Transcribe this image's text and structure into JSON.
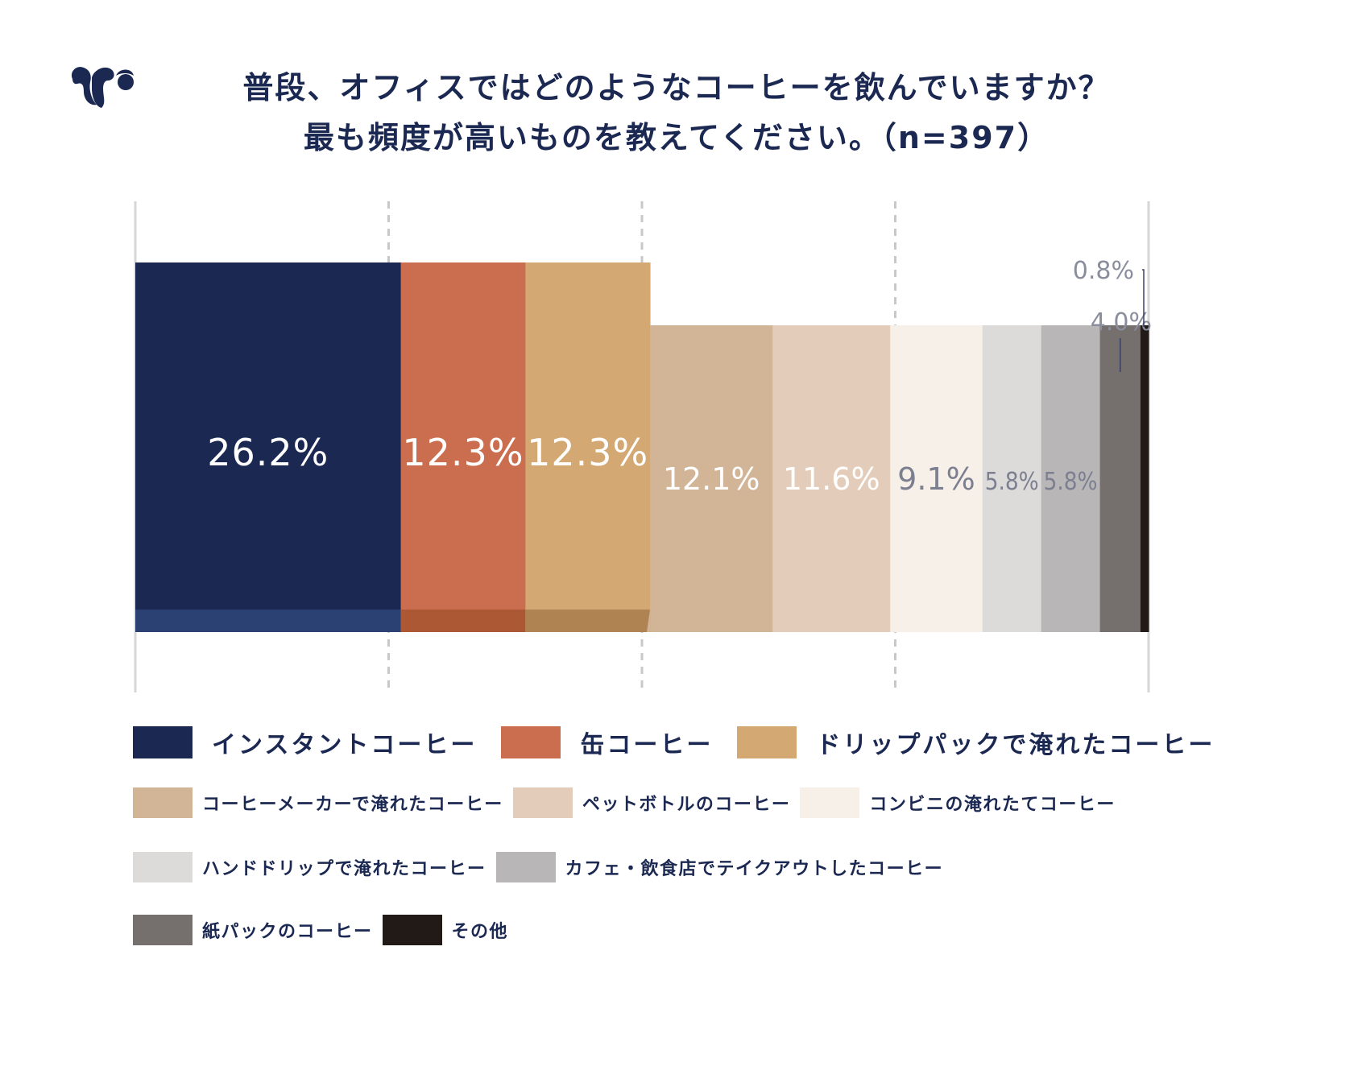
{
  "header": {
    "logo": "squirrel-logo-icon",
    "title_line1": "普段、オフィスではどのようなコーヒーを飲んでいますか？",
    "title_line2": "最も頻度が高いものを教えてください。（n=397）"
  },
  "chart_data": {
    "type": "bar",
    "orientation": "horizontal-stacked-100",
    "title": "普段、オフィスではどのようなコーヒーを飲んでいますか？ 最も頻度が高いものを教えてください。（n=397）",
    "n": 397,
    "xlim": [
      0,
      100
    ],
    "grid": true,
    "gridlines": [
      25,
      50,
      75
    ],
    "legend_position": "bottom",
    "unit": "%",
    "series": [
      {
        "name": "インスタントコーヒー",
        "value": 26.2,
        "label": "26.2%",
        "color": "#1b2852",
        "shade": "#2c4173",
        "highlight": true,
        "label_color": "#ffffff"
      },
      {
        "name": "缶コーヒー",
        "value": 12.3,
        "label": "12.3%",
        "color": "#cb6d4f",
        "shade": "#ad5834",
        "highlight": true,
        "label_color": "#ffffff"
      },
      {
        "name": "ドリップパックで淹れたコーヒー",
        "value": 12.3,
        "label": "12.3%",
        "color": "#d3a872",
        "shade": "#b08452",
        "highlight": true,
        "label_color": "#ffffff"
      },
      {
        "name": "コーヒーメーカーで淹れたコーヒー",
        "value": 12.1,
        "label": "12.1%",
        "color": "#d2b497",
        "highlight": false,
        "label_color": "#ffffff"
      },
      {
        "name": "ペットボトルのコーヒー",
        "value": 11.6,
        "label": "11.6%",
        "color": "#e3cdba",
        "highlight": false,
        "label_color": "#ffffff"
      },
      {
        "name": "コンビニの淹れたてコーヒー",
        "value": 9.1,
        "label": "9.1%",
        "color": "#f7f0e8",
        "highlight": false,
        "label_color": "#7b7f90"
      },
      {
        "name": "ハンドドリップで淹れたコーヒー",
        "value": 5.8,
        "label": "5.8%",
        "color": "#dcdbda",
        "highlight": false,
        "label_color": "#7b7f90"
      },
      {
        "name": "カフェ・飲食店でテイクアウトしたコーヒー",
        "value": 5.8,
        "label": "5.8%",
        "color": "#b8b6b7",
        "highlight": false,
        "label_color": "#7b7f90"
      },
      {
        "name": "紙パックのコーヒー",
        "value": 4.0,
        "label": "4.0%",
        "color": "#756f6e",
        "highlight": false,
        "label_color": "#8a8e9c",
        "callout": true
      },
      {
        "name": "その他",
        "value": 0.8,
        "label": "0.8%",
        "color": "#211a17",
        "highlight": false,
        "label_color": "#8a8e9c",
        "callout": true
      }
    ]
  },
  "legend": {
    "row1": [
      0,
      1,
      2
    ],
    "row2": [
      3,
      4,
      5
    ],
    "row3": [
      6,
      7
    ],
    "row4": [
      8,
      9
    ]
  }
}
